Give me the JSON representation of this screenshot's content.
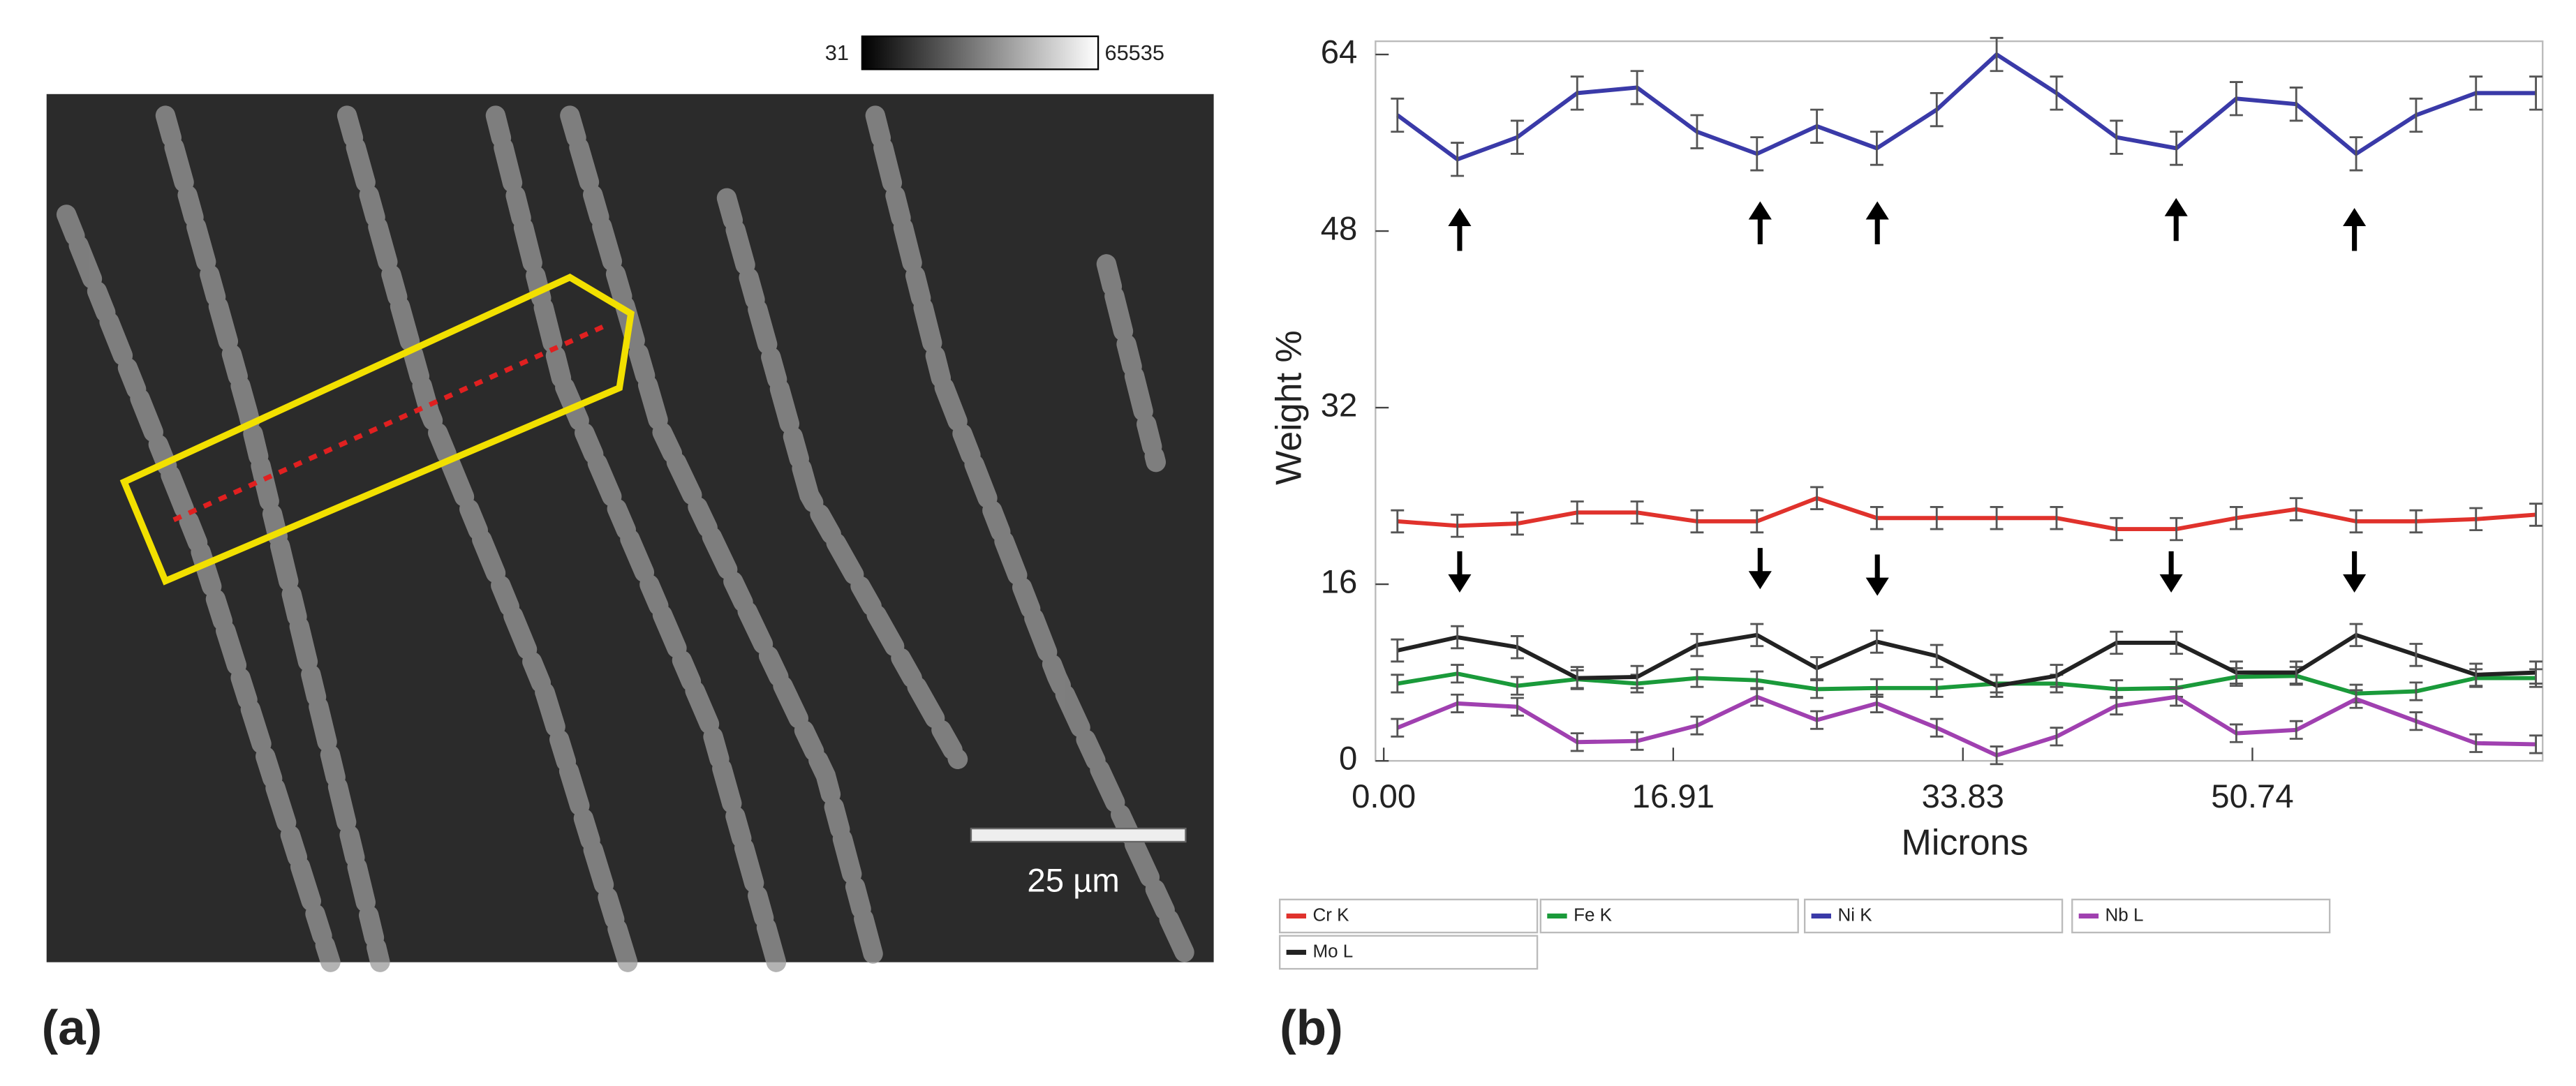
{
  "panel_a": {
    "label": "(a)",
    "scale_bar": "25 µm",
    "colorbar_min": "31",
    "colorbar_max": "65535"
  },
  "chart_data": {
    "type": "line",
    "panel_label": "(b)",
    "xlabel": "Microns",
    "ylabel": "Weight %",
    "x": [
      0.8,
      4.3,
      7.8,
      11.3,
      14.8,
      18.3,
      21.8,
      25.3,
      28.8,
      32.3,
      35.8,
      39.3,
      42.8,
      46.3,
      49.8,
      53.3,
      56.8,
      60.3,
      63.8,
      67.3
    ],
    "xlim": [
      0,
      67.5
    ],
    "xticks": [
      {
        "value": 0,
        "label": "0.00"
      },
      16.91,
      33.83,
      50.74
    ],
    "ylim": [
      0,
      64
    ],
    "yticks": [
      0,
      16,
      32,
      48,
      64
    ],
    "series": [
      {
        "name": "Cr K",
        "color": "#e0322c",
        "error": 1.0,
        "values": [
          21.7,
          21.3,
          21.5,
          22.5,
          22.5,
          21.7,
          21.7,
          23.8,
          22.0,
          22.0,
          22.0,
          22.0,
          21.0,
          21.0,
          22.0,
          22.8,
          21.7,
          21.7,
          21.9,
          22.3
        ]
      },
      {
        "name": "Fe K",
        "color": "#1a9a3a",
        "error": 0.8,
        "values": [
          7.0,
          7.9,
          6.8,
          7.4,
          7.0,
          7.5,
          7.3,
          6.5,
          6.6,
          6.6,
          7.0,
          7.0,
          6.5,
          6.6,
          7.6,
          7.7,
          6.1,
          6.3,
          7.5,
          7.5
        ]
      },
      {
        "name": "Ni K",
        "color": "#3a3aa8",
        "error": 1.5,
        "values": [
          58.5,
          54.5,
          56.5,
          60.5,
          61.0,
          57.0,
          55.0,
          57.5,
          55.5,
          59.0,
          64.0,
          60.5,
          56.5,
          55.5,
          60.0,
          59.5,
          55.0,
          58.5,
          60.5,
          60.5
        ]
      },
      {
        "name": "Nb L",
        "color": "#a040b0",
        "error": 0.8,
        "values": [
          3.0,
          5.2,
          4.9,
          1.7,
          1.8,
          3.2,
          5.8,
          3.7,
          5.2,
          3.0,
          0.5,
          2.2,
          5.0,
          5.8,
          2.5,
          2.8,
          5.6,
          3.6,
          1.6,
          1.5
        ]
      },
      {
        "name": "Mo L",
        "color": "#222222",
        "error": 1.0,
        "values": [
          10.0,
          11.2,
          10.3,
          7.5,
          7.6,
          10.5,
          11.4,
          8.4,
          10.8,
          9.5,
          6.8,
          7.7,
          10.7,
          10.7,
          8.0,
          8.0,
          11.4,
          9.6,
          7.8,
          8.0
        ]
      }
    ]
  }
}
